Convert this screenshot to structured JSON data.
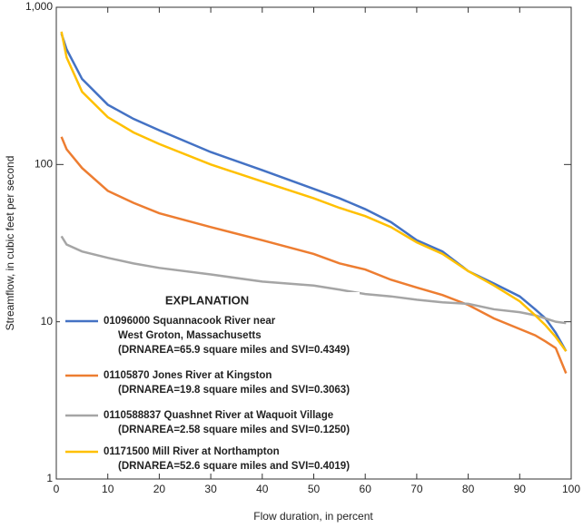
{
  "chart_data": {
    "type": "line",
    "x_label": "Flow duration, in percent",
    "y_label": "Streamflow, in cubic feet per second",
    "log_y": true,
    "xlim": [
      0,
      100
    ],
    "xticks": [
      0,
      10,
      20,
      30,
      40,
      50,
      60,
      70,
      80,
      90,
      100
    ],
    "ylim": [
      1,
      1000
    ],
    "yticks": [
      1,
      10,
      100,
      {
        "value": 1000,
        "label": "1,000"
      }
    ],
    "legend_title": "EXPLANATION",
    "legend_position": "lower left",
    "x": [
      1,
      2,
      5,
      10,
      15,
      20,
      30,
      40,
      50,
      55,
      60,
      65,
      70,
      75,
      80,
      85,
      90,
      93,
      95,
      97,
      99
    ],
    "series": [
      {
        "name": "01096000 Squannacook River near",
        "legend_lines": [
          "West Groton, Massachusetts",
          "(DRNAREA=65.9 square miles and SVI=0.4349)"
        ],
        "color": "#4472c4",
        "values": [
          680,
          540,
          350,
          240,
          195,
          165,
          120,
          92,
          70,
          61,
          52,
          43,
          33,
          28,
          21,
          17.5,
          14.5,
          12,
          10.5,
          8.5,
          6.5
        ]
      },
      {
        "name": "01105870 Jones River at Kingston",
        "legend_lines": [
          "(DRNAREA=19.8 square miles and SVI=0.3063)"
        ],
        "color": "#ed7d31",
        "values": [
          150,
          125,
          95,
          68,
          57,
          49,
          40,
          33,
          27,
          23.5,
          21.5,
          18.5,
          16.5,
          14.8,
          12.8,
          10.5,
          9,
          8.2,
          7.5,
          6.8,
          4.7
        ]
      },
      {
        "name": "0110588837 Quashnet River at Waquoit Village",
        "legend_lines": [
          "(DRNAREA=2.58 square miles and SVI=0.1250)"
        ],
        "color": "#a5a5a5",
        "values": [
          35,
          31,
          28,
          25.5,
          23.5,
          22,
          20,
          18,
          17,
          16,
          15,
          14.5,
          13.8,
          13.3,
          13,
          12,
          11.5,
          11,
          10.5,
          10,
          9.8
        ]
      },
      {
        "name": "01171500 Mill River at Northampton",
        "legend_lines": [
          "(DRNAREA=52.6 square miles and SVI=0.4019)"
        ],
        "color": "#ffc000",
        "values": [
          700,
          480,
          290,
          200,
          160,
          135,
          100,
          78,
          61,
          53,
          47,
          40,
          32,
          27,
          21,
          17,
          13.5,
          11,
          9.5,
          8,
          6.5
        ]
      }
    ]
  }
}
